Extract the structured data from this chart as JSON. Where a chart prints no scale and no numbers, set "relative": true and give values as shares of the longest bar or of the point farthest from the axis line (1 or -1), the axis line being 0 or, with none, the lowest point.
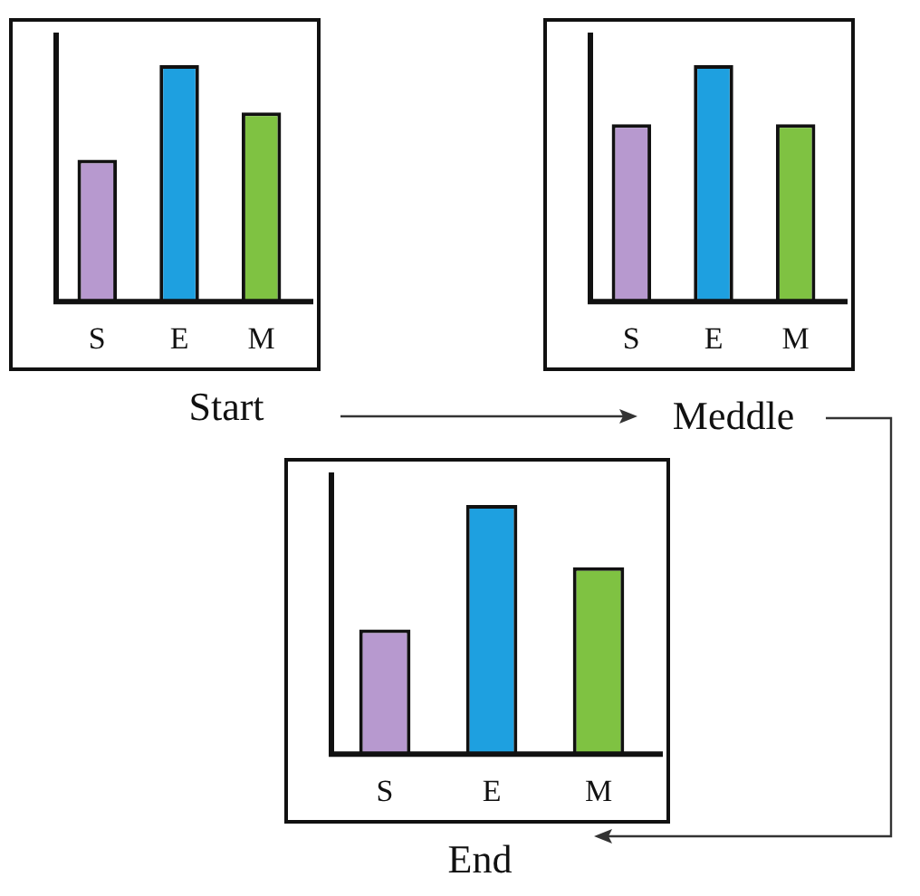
{
  "chart_data": [
    {
      "type": "bar",
      "title": "Start",
      "categories": [
        "S",
        "E",
        "M"
      ],
      "values": [
        0.6,
        1,
        0.8
      ],
      "colors": [
        "#b799cf",
        "#1ea0e0",
        "#7fc242"
      ],
      "relative": true
    },
    {
      "type": "bar",
      "title": "Meddle",
      "categories": [
        "S",
        "E",
        "M"
      ],
      "values": [
        0.75,
        1,
        0.75
      ],
      "colors": [
        "#b799cf",
        "#1ea0e0",
        "#7fc242"
      ],
      "relative": true
    },
    {
      "type": "bar",
      "title": "End",
      "categories": [
        "S",
        "E",
        "M"
      ],
      "values": [
        0.5,
        1,
        0.75
      ],
      "colors": [
        "#b799cf",
        "#1ea0e0",
        "#7fc242"
      ],
      "relative": true
    }
  ]
}
